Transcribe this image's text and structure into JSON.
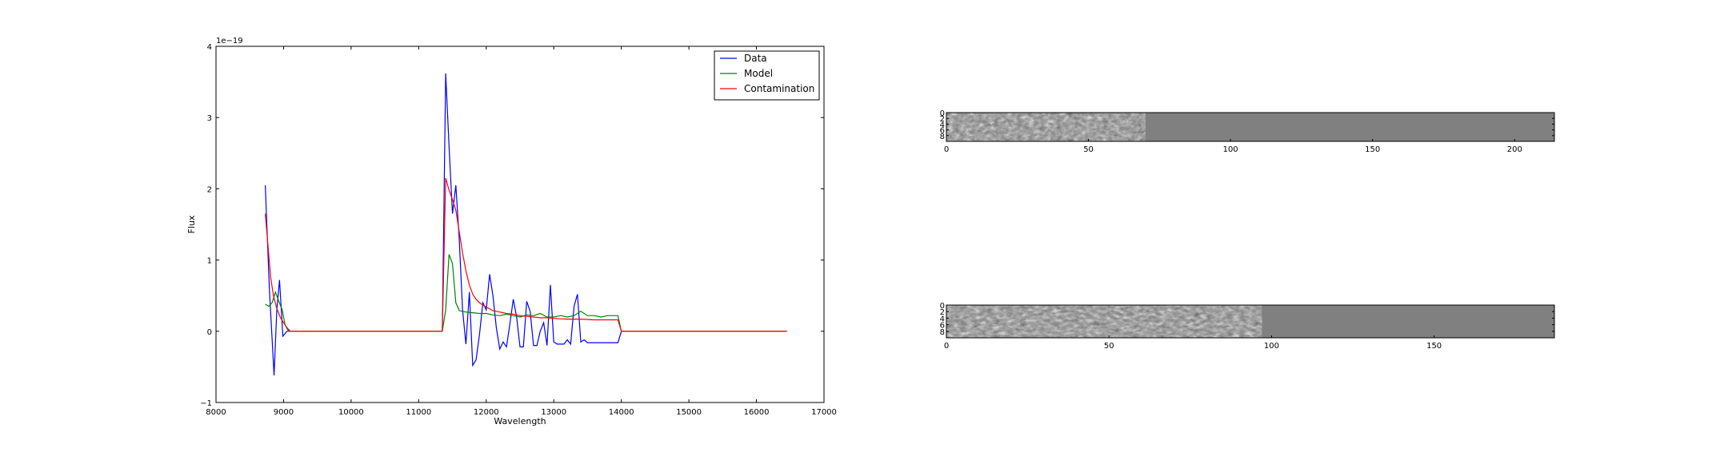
{
  "chart_data": [
    {
      "type": "line",
      "xlabel": "Wavelength",
      "ylabel": "Flux",
      "offset_text": "1e−19",
      "xlim": [
        8000,
        17000
      ],
      "ylim": [
        -1,
        4
      ],
      "xticks": [
        8000,
        9000,
        10000,
        11000,
        12000,
        13000,
        14000,
        15000,
        16000,
        17000
      ],
      "yticks": [
        -1,
        0,
        1,
        2,
        3,
        4
      ],
      "legend_position": "top-right",
      "grid": false,
      "series": [
        {
          "name": "Data",
          "color": "#0000ff",
          "x": [
            8730,
            8790,
            8860,
            8900,
            8940,
            8990,
            9050,
            9100,
            11000,
            11350,
            11400,
            11450,
            11500,
            11550,
            11600,
            11650,
            11700,
            11750,
            11800,
            11850,
            11900,
            11950,
            12000,
            12050,
            12100,
            12150,
            12200,
            12250,
            12300,
            12350,
            12400,
            12450,
            12500,
            12550,
            12600,
            12650,
            12700,
            12750,
            12800,
            12850,
            12900,
            12950,
            13000,
            13050,
            13100,
            13150,
            13200,
            13250,
            13300,
            13350,
            13400,
            13450,
            13500,
            13550,
            13600,
            13650,
            13700,
            13750,
            13800,
            13850,
            13900,
            13950,
            14000,
            16450
          ],
          "y": [
            2.05,
            0.6,
            -0.62,
            0.3,
            0.72,
            -0.07,
            0.0,
            0.0,
            0.0,
            0.0,
            3.62,
            2.6,
            1.65,
            2.05,
            1.3,
            0.3,
            -0.18,
            0.55,
            -0.48,
            -0.4,
            -0.05,
            0.4,
            0.3,
            0.8,
            0.5,
            0.05,
            -0.25,
            -0.15,
            -0.22,
            0.1,
            0.45,
            0.2,
            -0.22,
            -0.22,
            0.42,
            0.28,
            -0.2,
            -0.2,
            0.0,
            0.12,
            -0.2,
            0.65,
            -0.15,
            -0.18,
            -0.18,
            -0.18,
            -0.12,
            -0.18,
            0.35,
            0.52,
            -0.15,
            -0.12,
            -0.16,
            -0.16,
            -0.16,
            -0.16,
            -0.16,
            -0.16,
            -0.16,
            -0.16,
            -0.16,
            -0.16,
            0.0,
            0.0
          ]
        },
        {
          "name": "Model",
          "color": "#008000",
          "x": [
            8730,
            8780,
            8830,
            8880,
            8930,
            8980,
            9020,
            9060,
            9100,
            11000,
            11350,
            11400,
            11450,
            11500,
            11550,
            11600,
            11700,
            11800,
            11900,
            12000,
            12100,
            12200,
            12300,
            12400,
            12500,
            12600,
            12700,
            12800,
            12900,
            13000,
            13100,
            13200,
            13300,
            13400,
            13500,
            13600,
            13700,
            13800,
            13950,
            14000,
            16450
          ],
          "y": [
            0.38,
            0.35,
            0.4,
            0.55,
            0.42,
            0.3,
            0.1,
            0.02,
            0.0,
            0.0,
            0.0,
            0.3,
            1.08,
            0.95,
            0.4,
            0.29,
            0.27,
            0.26,
            0.25,
            0.25,
            0.23,
            0.22,
            0.24,
            0.22,
            0.2,
            0.23,
            0.22,
            0.25,
            0.2,
            0.2,
            0.22,
            0.2,
            0.22,
            0.28,
            0.22,
            0.22,
            0.2,
            0.22,
            0.22,
            0.0,
            0.0
          ]
        },
        {
          "name": "Contamination",
          "color": "#ff0000",
          "x": [
            8730,
            8770,
            8810,
            8850,
            8900,
            8950,
            9000,
            9050,
            9100,
            11000,
            11350,
            11400,
            11450,
            11500,
            11550,
            11600,
            11650,
            11700,
            11750,
            11800,
            11850,
            11900,
            12000,
            12100,
            12200,
            12300,
            12400,
            12500,
            12600,
            12700,
            12800,
            12900,
            13000,
            13200,
            13400,
            13600,
            13800,
            13950,
            14000,
            16450
          ],
          "y": [
            1.65,
            1.2,
            0.75,
            0.5,
            0.32,
            0.2,
            0.12,
            0.05,
            0.0,
            0.0,
            0.0,
            2.15,
            1.98,
            1.85,
            1.7,
            1.4,
            1.1,
            0.85,
            0.65,
            0.52,
            0.45,
            0.4,
            0.34,
            0.29,
            0.27,
            0.25,
            0.24,
            0.22,
            0.21,
            0.2,
            0.19,
            0.19,
            0.18,
            0.17,
            0.17,
            0.16,
            0.16,
            0.16,
            0.0,
            0.0
          ]
        }
      ]
    },
    {
      "type": "heatmap",
      "colormap": "gray",
      "xlim": [
        0,
        214
      ],
      "ylim": [
        10,
        0
      ],
      "xticks": [
        0,
        50,
        100,
        150,
        200
      ],
      "yticks": [
        0,
        2,
        4,
        6,
        8
      ],
      "data_columns": 70,
      "fill_value_color": "#808080"
    },
    {
      "type": "heatmap",
      "colormap": "gray",
      "xlim": [
        0,
        187
      ],
      "ylim": [
        10,
        0
      ],
      "xticks": [
        0,
        50,
        100,
        150
      ],
      "yticks": [
        0,
        2,
        4,
        6,
        8
      ],
      "data_columns": 97,
      "fill_value_color": "#808080"
    }
  ]
}
